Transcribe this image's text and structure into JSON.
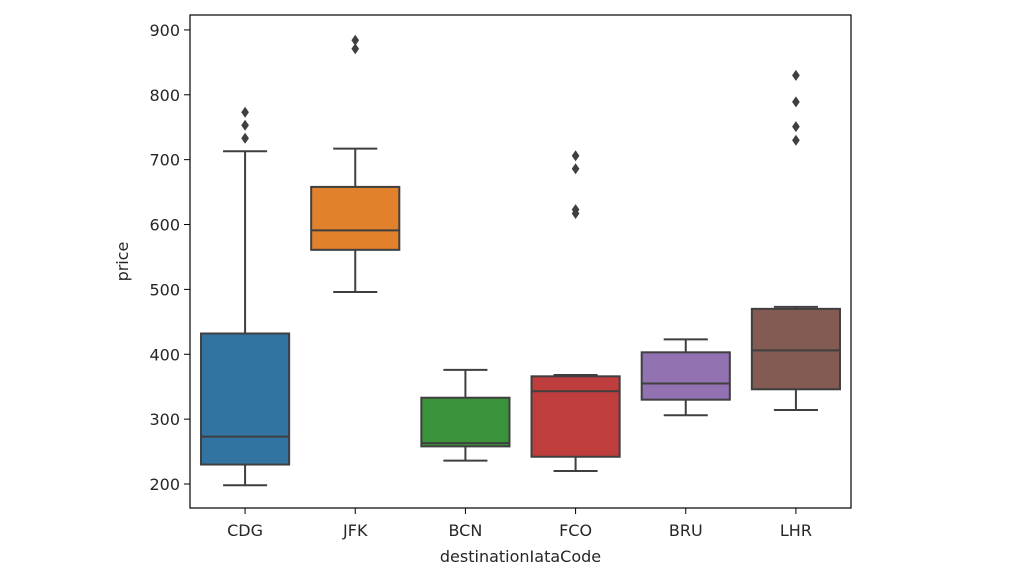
{
  "chart_data": {
    "type": "box",
    "xlabel": "destinationIataCode",
    "ylabel": "price",
    "ylim": [
      163,
      923
    ],
    "yticks": [
      200,
      300,
      400,
      500,
      600,
      700,
      800,
      900
    ],
    "grid": false,
    "legend": "none",
    "categories": [
      "CDG",
      "JFK",
      "BCN",
      "FCO",
      "BRU",
      "LHR"
    ],
    "boxes": [
      {
        "category": "CDG",
        "color": "#3274a1",
        "whisker_low": 198,
        "q1": 230,
        "median": 273,
        "q3": 432,
        "whisker_high": 713,
        "outliers": [
          733,
          753,
          773
        ]
      },
      {
        "category": "JFK",
        "color": "#e1812c",
        "whisker_low": 496,
        "q1": 561,
        "median": 591,
        "q3": 658,
        "whisker_high": 717,
        "outliers": [
          871,
          884
        ]
      },
      {
        "category": "BCN",
        "color": "#3a923a",
        "whisker_low": 236,
        "q1": 258,
        "median": 263,
        "q3": 333,
        "whisker_high": 376,
        "outliers": []
      },
      {
        "category": "FCO",
        "color": "#c03d3e",
        "whisker_low": 220,
        "q1": 242,
        "median": 343,
        "q3": 366,
        "whisker_high": 368,
        "outliers": [
          617,
          623,
          686,
          706
        ]
      },
      {
        "category": "BRU",
        "color": "#9372b2",
        "whisker_low": 306,
        "q1": 330,
        "median": 355,
        "q3": 403,
        "whisker_high": 423,
        "outliers": []
      },
      {
        "category": "LHR",
        "color": "#845b53",
        "whisker_low": 314,
        "q1": 346,
        "median": 406,
        "q3": 470,
        "whisker_high": 473,
        "outliers": [
          730,
          751,
          789,
          830
        ]
      }
    ]
  }
}
